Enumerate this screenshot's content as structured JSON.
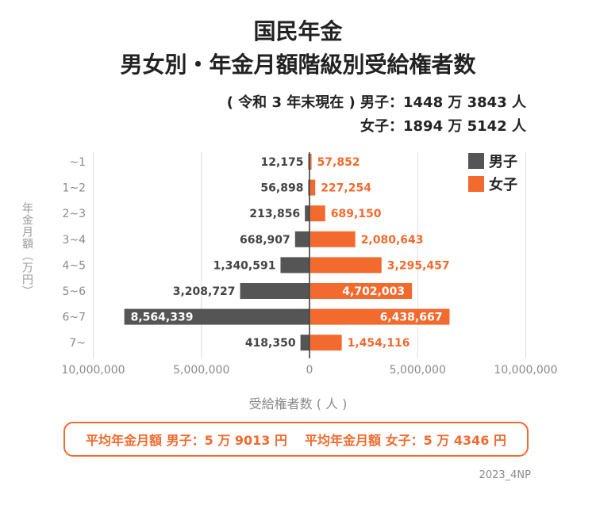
{
  "title": "国民年金",
  "subtitle": "男女別・年金月額階級別受給権者数",
  "note_male": "( 令和 3 年末現在 ) 男子：1448 万 3843 人",
  "note_female": "女子：1894 万 5142 人",
  "yaxis_label": "年金月額（万円）",
  "xaxis_label": "受給権者数 ( 人 )",
  "average_male": "平均年金月額 男子：5 万 9013 円",
  "average_female": "平均年金月額 女子：5 万 4346 円",
  "credit": "2023_4NP",
  "colors": {
    "male": "#555555",
    "female": "#f26a2e"
  },
  "chart_data": {
    "type": "bar",
    "orientation": "horizontal-butterfly",
    "categories": [
      "~1",
      "1~2",
      "2~3",
      "3~4",
      "4~5",
      "5~6",
      "6~7",
      "7~"
    ],
    "series": [
      {
        "name": "男子",
        "values": [
          12175,
          56898,
          213856,
          668907,
          1340591,
          3208727,
          8564339,
          418350
        ],
        "labels": [
          "12,175",
          "56,898",
          "213,856",
          "668,907",
          "1,340,591",
          "3,208,727",
          "8,564,339",
          "418,350"
        ]
      },
      {
        "name": "女子",
        "values": [
          57852,
          227254,
          689150,
          2080643,
          3295457,
          4702003,
          6438667,
          1454116
        ],
        "labels": [
          "57,852",
          "227,254",
          "689,150",
          "2,080,643",
          "3,295,457",
          "4,702,003",
          "6,438,667",
          "1,454,116"
        ]
      }
    ],
    "xlim": [
      -10000000,
      10000000
    ],
    "xticks": [
      -10000000,
      -5000000,
      0,
      5000000,
      10000000
    ],
    "xtick_labels": [
      "10,000,000",
      "5,000,000",
      "0",
      "5,000,000",
      "10,000,000"
    ],
    "grid": true,
    "legend": "top-right"
  }
}
